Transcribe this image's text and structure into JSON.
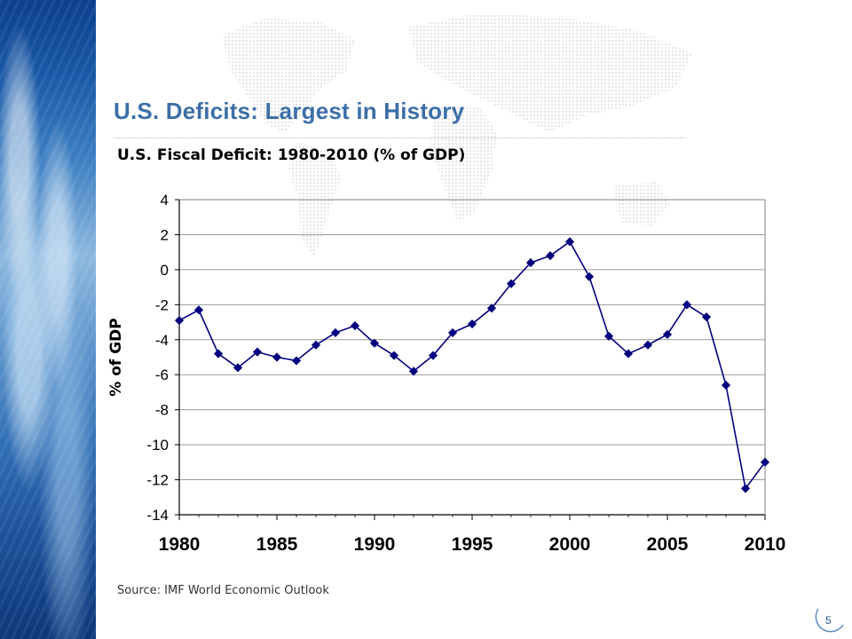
{
  "slide": {
    "title": "U.S. Deficits: Largest in History",
    "page_number": "5",
    "source": "Source: IMF World Economic Outlook"
  },
  "chart_data": {
    "type": "line",
    "title": "U.S. Fiscal Deficit: 1980-2010 (% of GDP)",
    "xlabel": "",
    "ylabel": "% of GDP",
    "x": [
      1980,
      1981,
      1982,
      1983,
      1984,
      1985,
      1986,
      1987,
      1988,
      1989,
      1990,
      1991,
      1992,
      1993,
      1994,
      1995,
      1996,
      1997,
      1998,
      1999,
      2000,
      2001,
      2002,
      2003,
      2004,
      2005,
      2006,
      2007,
      2008,
      2009,
      2010
    ],
    "series": [
      {
        "values": [
          -2.9,
          -2.3,
          -4.8,
          -5.6,
          -4.7,
          -5.0,
          -5.2,
          -4.3,
          -3.6,
          -3.2,
          -4.2,
          -4.9,
          -5.8,
          -4.9,
          -3.6,
          -3.1,
          -2.2,
          -0.8,
          0.4,
          0.8,
          1.6,
          -0.4,
          -3.8,
          -4.8,
          -4.3,
          -3.7,
          -2.0,
          -2.7,
          -6.6,
          -12.5,
          -11.0
        ]
      }
    ],
    "ylim": [
      -14,
      4
    ],
    "xlim": [
      1980,
      2010
    ],
    "y_ticks": [
      "4",
      "2",
      "0",
      "-2",
      "-4",
      "-6",
      "-8",
      "-10",
      "-12",
      "-14"
    ],
    "x_ticks": [
      "1980",
      "1985",
      "1990",
      "1995",
      "2000",
      "2005",
      "2010"
    ],
    "grid": true,
    "colors": {
      "line": "#00007f",
      "marker": "#00007f",
      "grid": "#9a9a9a",
      "axis": "#000000"
    },
    "marker": "diamond"
  }
}
